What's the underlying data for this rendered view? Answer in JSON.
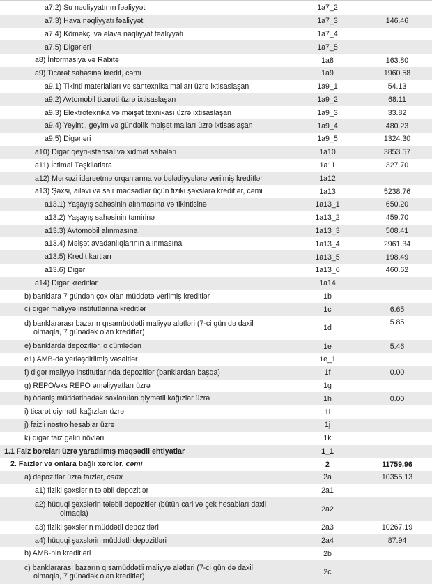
{
  "rows": [
    {
      "label": "a7.2) Su nəqliyyatının fəaliyyəti",
      "code": "1a7_2",
      "value": "",
      "level": 4
    },
    {
      "label": "a7.3) Hava nəqliyyatı fəaliyyəti",
      "code": "1a7_3",
      "value": "146.46",
      "level": 4
    },
    {
      "label": "a7.4) Köməkçi və əlavə nəqliyyat fəaliyyəti",
      "code": "1a7_4",
      "value": "",
      "level": 4
    },
    {
      "label": "a7.5) Digərləri",
      "code": "1a7_5",
      "value": "",
      "level": 4
    },
    {
      "label": "a8)  İnformasiya və Rabitə",
      "code": "1a8",
      "value": "163.80",
      "level": 3
    },
    {
      "label": "a9) Ticarət sahəsinə kredit, cəmi",
      "code": "1a9",
      "value": "1960.58",
      "level": 3
    },
    {
      "label": "a9.1) Tikinti materialları və santexnika malları üzrə ixtisaslaşan",
      "code": "1a9_1",
      "value": "54.13",
      "level": 4
    },
    {
      "label": "a9.2) Avtomobil ticarəti üzrə ixtisaslaşan",
      "code": "1a9_2",
      "value": "68.11",
      "level": 4
    },
    {
      "label": "a9.3) Elektrotexnika və məişət texnikası üzrə ixtisaslaşan",
      "code": "1a9_3",
      "value": "33.82",
      "level": 4
    },
    {
      "label": "a9.4) Yeyinti, geyim və gündəlik məişət malları üzrə ixtisaslaşan",
      "code": "1a9_4",
      "value": "480.23",
      "level": 4
    },
    {
      "label": "a9.5) Digərləri",
      "code": "1a9_5",
      "value": "1324.30",
      "level": 4
    },
    {
      "label": "a10) Digər qeyri-istehsal və xidmət sahələri",
      "code": "1a10",
      "value": "3853.57",
      "level": 3
    },
    {
      "label": "a11) İctimai Təşkilatlara",
      "code": "1a11",
      "value": "327.70",
      "level": 3
    },
    {
      "label": "a12) Mərkəzi  idarəetmə orqanlarına və bələdiyyələrə verilmiş kreditlər",
      "code": "1a12",
      "value": "",
      "level": 3
    },
    {
      "label": "a13) Şəxsi, ailəvi və sair məqsədlər üçün fiziki şəxslərə kreditlər, cəmi",
      "code": "1a13",
      "value": "5238.76",
      "level": 3
    },
    {
      "label": "a13.1) Yaşayış sahəsinin alınmasına və tikintisinə",
      "code": "1a13_1",
      "value": "650.20",
      "level": 4
    },
    {
      "label": "a13.2) Yaşayış sahəsinin təmirinə",
      "code": "1a13_2",
      "value": "459.70",
      "level": 4
    },
    {
      "label": "a13.3) Avtomobil alınmasına",
      "code": "1a13_3",
      "value": "508.41",
      "level": 4
    },
    {
      "label": "a13.4) Məişət avadanlıqlarının alınmasına",
      "code": "1a13_4",
      "value": "2961.34",
      "level": 4
    },
    {
      "label": "a13.5) Kredit kartları",
      "code": "1a13_5",
      "value": "198.49",
      "level": 4
    },
    {
      "label": "a13.6) Digər",
      "code": "1a13_6",
      "value": "460.62",
      "level": 4
    },
    {
      "label": "a14) Digər kreditlər",
      "code": "1a14",
      "value": "",
      "level": 3
    },
    {
      "label": "b) banklara 7 gündən çox olan müddətə verilmiş kreditlər",
      "code": "1b",
      "value": "",
      "level": 2
    },
    {
      "label": "c) digər maliyyə institutlarına kreditlər",
      "code": "1c",
      "value": "6.65",
      "level": 2
    },
    {
      "label": "d) banklararası bazarın qısamüddətli maliyyə alətləri (7-ci gün də daxil olmaqla, 7 günədək olan kreditlər)",
      "code": "1d",
      "value": "5.85",
      "level": 2,
      "double": true
    },
    {
      "label": "e) banklarda depozitlər, o cümlədən",
      "code": "1e",
      "value": "5.46",
      "level": 2
    },
    {
      "label": "e1)  AMB-də yerləşdirilmiş vəsaitlər",
      "code": "1e_1",
      "value": "",
      "level": 2
    },
    {
      "label": "f) digər maliyyə institutlarında depozitlər (banklardan başqa)",
      "code": "1f",
      "value": "0.00",
      "level": 2
    },
    {
      "label": "g) REPO/əks REPO əməliyyatları üzrə",
      "code": "1g",
      "value": "",
      "level": 2
    },
    {
      "label": "h) ödəniş müddətinədək saxlanılan qiymətli kağızlar üzrə",
      "code": "1h",
      "value": "0.00",
      "level": 2
    },
    {
      "label": "i) ticarət qiymətli kağızları üzrə",
      "code": "1i",
      "value": "",
      "level": 2
    },
    {
      "label": "j) faizli nostro hesablar üzrə",
      "code": "1j",
      "value": "",
      "level": 2
    },
    {
      "label": "k) digər faiz gəliri növləri",
      "code": "1k",
      "value": "",
      "level": 2
    },
    {
      "label": "1.1 Faiz borcları üzrə yaradılmış məqsədli ehtiyatlar",
      "code": "1_1",
      "value": "",
      "level": 0,
      "bold": true
    },
    {
      "label": "2. Faizlər və onlara bağlı xərclər, ",
      "label_em": "cəmi",
      "code": "2",
      "value": "11759.96",
      "level": 1,
      "bold": true
    },
    {
      "label": "a) depozitlər üzrə faizlər, ",
      "label_em": "cəmi",
      "code": "2a",
      "value": "10355.13",
      "level": 2
    },
    {
      "label": "a1) fiziki şəxslərin tələbli depozitlər",
      "code": "2a1",
      "value": "",
      "level": 3
    },
    {
      "label": "a2) hüquqi şəxslərin tələbli depozitlər (bütün cari və çek hesabları daxil olmaqla)",
      "code": "2a2",
      "value": "",
      "level": 3,
      "double": true
    },
    {
      "label": "a3) fiziki şəxslərin müddətli depozitləri",
      "code": "2a3",
      "value": "10267.19",
      "level": 3
    },
    {
      "label": "a4) hüquqi şəxslərin müddətli depozitləri",
      "code": "2a4",
      "value": "87.94",
      "level": 3
    },
    {
      "label": "b) AMB-nin kreditləri",
      "code": "2b",
      "value": "",
      "level": 2
    },
    {
      "label": "c) banklararası bazarın qısamüddətli maliyyə alətləri (7-ci gün də daxil olmaqla, 7 günədək olan kreditlər)",
      "code": "2c",
      "value": "",
      "level": 2,
      "double": true
    }
  ]
}
